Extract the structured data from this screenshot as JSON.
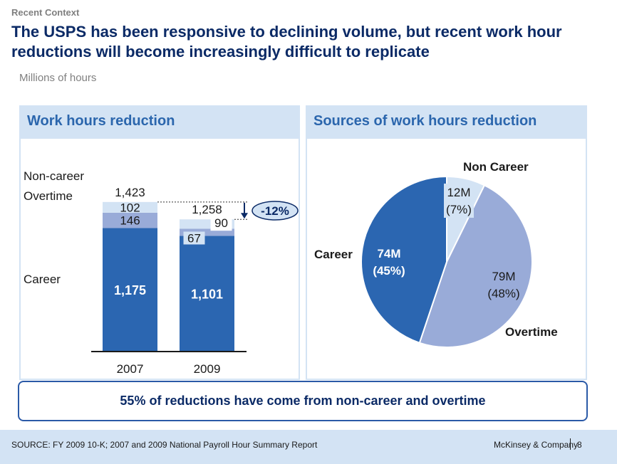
{
  "header": {
    "kicker": "Recent Context",
    "title": "The USPS has been responsive to declining volume, but recent work hour reductions will become increasingly difficult to replicate",
    "unit": "Millions of hours"
  },
  "colors": {
    "career": "#2b66b1",
    "overtime": "#99abd8",
    "noncareer": "#d3e3f4",
    "title": "#0b2a66",
    "accent": "#2b66ad"
  },
  "chart_data": [
    {
      "type": "bar",
      "title": "Work hours reduction",
      "stacked": true,
      "categories": [
        "2007",
        "2009"
      ],
      "series": [
        {
          "name": "Career",
          "values": [
            1175,
            1101
          ]
        },
        {
          "name": "Overtime",
          "values": [
            146,
            67
          ]
        },
        {
          "name": "Non-career",
          "values": [
            102,
            90
          ]
        }
      ],
      "totals": [
        1423,
        1258
      ],
      "change_label": "-12%",
      "value_labels": {
        "Career": [
          "1,175",
          "1,101"
        ],
        "Overtime": [
          "146",
          "67"
        ],
        "Non-career": [
          "102",
          "90"
        ],
        "totals": [
          "1,423",
          "1,258"
        ]
      }
    },
    {
      "type": "pie",
      "title": "Sources of work hours reduction",
      "slices": [
        {
          "name": "Non Career",
          "value": 12,
          "label": "12M",
          "pct": "(7%)"
        },
        {
          "name": "Overtime",
          "value": 79,
          "label": "79M",
          "pct": "(48%)"
        },
        {
          "name": "Career",
          "value": 74,
          "label": "74M",
          "pct": "(45%)"
        }
      ]
    }
  ],
  "callout": "55% of reductions have come from non-career and overtime",
  "footer": {
    "source": "SOURCE: FY 2009 10-K; 2007 and 2009 National Payroll Hour Summary Report",
    "brand": "McKinsey & Company",
    "page": "8"
  }
}
